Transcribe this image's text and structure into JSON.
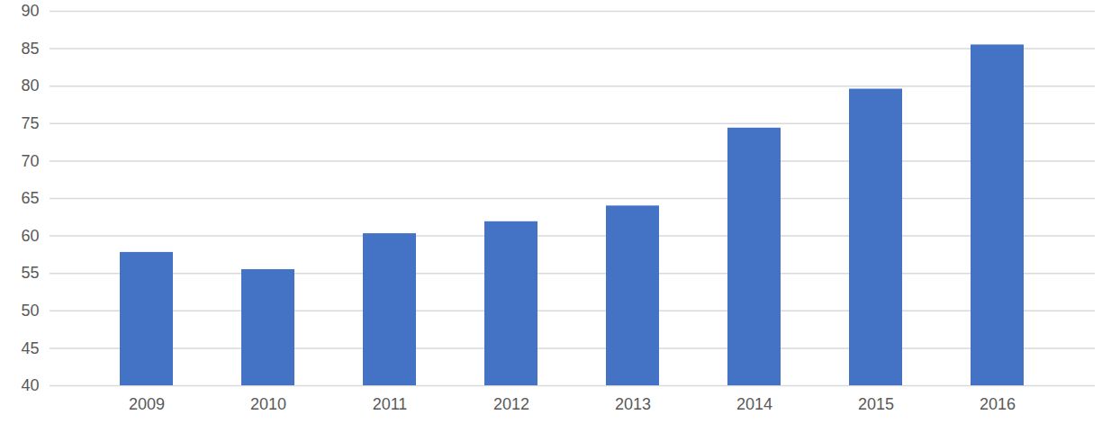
{
  "chart_data": {
    "type": "bar",
    "categories": [
      "2009",
      "2010",
      "2011",
      "2012",
      "2013",
      "2014",
      "2015",
      "2016"
    ],
    "values": [
      57.8,
      55.5,
      60.3,
      61.9,
      64.0,
      74.4,
      79.6,
      85.5
    ],
    "color": "#4472c4",
    "ylim": [
      40,
      90
    ],
    "yticks": [
      40,
      45,
      50,
      55,
      60,
      65,
      70,
      75,
      80,
      85,
      90
    ],
    "grid": true
  }
}
